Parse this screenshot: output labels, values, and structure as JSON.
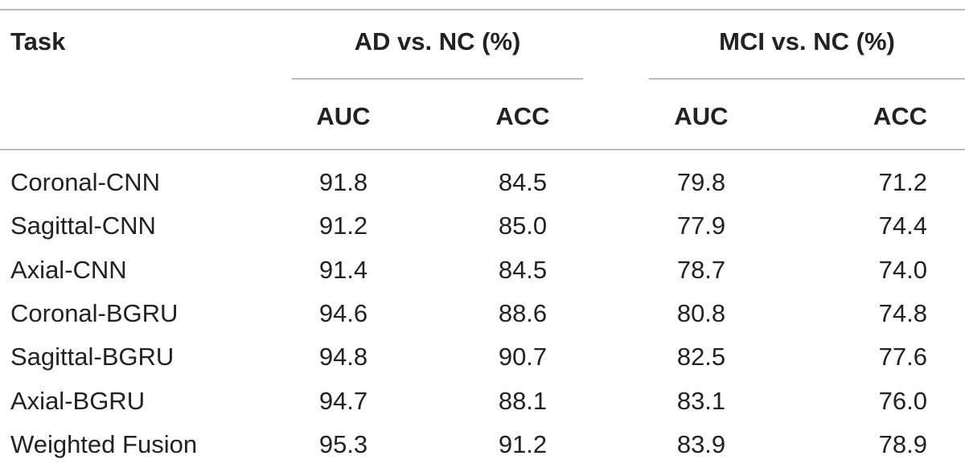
{
  "table": {
    "header_task": "Task",
    "group_ad": "AD vs. NC (%)",
    "group_mci": "MCI vs. NC (%)",
    "subheaders": [
      "AUC",
      "ACC",
      "AUC",
      "ACC"
    ],
    "rows": [
      {
        "task": "Coronal-CNN",
        "ad_auc": "91.8",
        "ad_acc": "84.5",
        "mci_auc": "79.8",
        "mci_acc": "71.2"
      },
      {
        "task": "Sagittal-CNN",
        "ad_auc": "91.2",
        "ad_acc": "85.0",
        "mci_auc": "77.9",
        "mci_acc": "74.4"
      },
      {
        "task": "Axial-CNN",
        "ad_auc": "91.4",
        "ad_acc": "84.5",
        "mci_auc": "78.7",
        "mci_acc": "74.0"
      },
      {
        "task": "Coronal-BGRU",
        "ad_auc": "94.6",
        "ad_acc": "88.6",
        "mci_auc": "80.8",
        "mci_acc": "74.8"
      },
      {
        "task": "Sagittal-BGRU",
        "ad_auc": "94.8",
        "ad_acc": "90.7",
        "mci_auc": "82.5",
        "mci_acc": "77.6"
      },
      {
        "task": "Axial-BGRU",
        "ad_auc": "94.7",
        "ad_acc": "88.1",
        "mci_auc": "83.1",
        "mci_acc": "76.0"
      },
      {
        "task": "Weighted Fusion",
        "ad_auc": "95.3",
        "ad_acc": "91.2",
        "mci_auc": "83.9",
        "mci_acc": "78.9"
      }
    ]
  }
}
